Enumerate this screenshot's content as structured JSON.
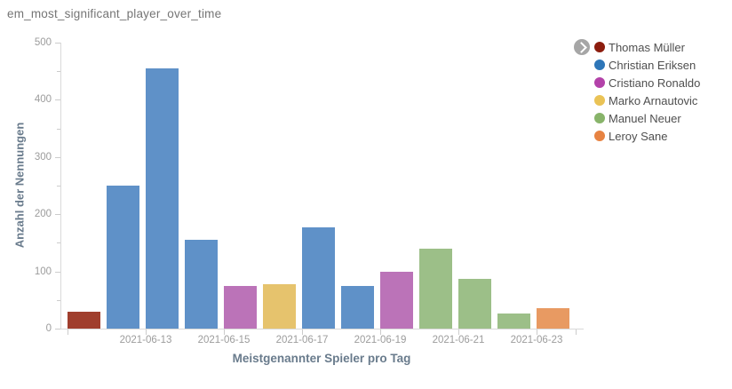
{
  "title": "em_most_significant_player_over_time",
  "legend": {
    "items": [
      {
        "label": "Thomas Müller",
        "color": "#8c1d0e"
      },
      {
        "label": "Christian Eriksen",
        "color": "#2e76b8"
      },
      {
        "label": "Cristiano Ronaldo",
        "color": "#b342a9"
      },
      {
        "label": "Marko Arnautovic",
        "color": "#eac356"
      },
      {
        "label": "Manuel Neuer",
        "color": "#88b46a"
      },
      {
        "label": "Leroy Sane",
        "color": "#e78342"
      }
    ]
  },
  "chart_data": {
    "type": "bar",
    "title": "em_most_significant_player_over_time",
    "xlabel": "Meistgenannter Spieler pro Tag",
    "ylabel": "Anzahl der Nennungen",
    "ylim": [
      0,
      500
    ],
    "yticks": [
      0,
      100,
      200,
      300,
      400,
      500
    ],
    "xtick_labels": [
      "2021-06-13",
      "2021-06-15",
      "2021-06-17",
      "2021-06-19",
      "2021-06-21",
      "2021-06-23"
    ],
    "grid": false,
    "legend_position": "right",
    "bars": [
      {
        "date": "2021-06-11",
        "player": "Thomas Müller",
        "value": 30,
        "color": "#a03e2d"
      },
      {
        "date": "2021-06-12",
        "player": "Christian Eriksen",
        "value": 250,
        "color": "#5f91c8"
      },
      {
        "date": "2021-06-13",
        "player": "Christian Eriksen",
        "value": 455,
        "color": "#5f91c8"
      },
      {
        "date": "2021-06-14",
        "player": "Christian Eriksen",
        "value": 155,
        "color": "#5f91c8"
      },
      {
        "date": "2021-06-15",
        "player": "Cristiano Ronaldo",
        "value": 75,
        "color": "#bb73b8"
      },
      {
        "date": "2021-06-16",
        "player": "Marko Arnautovic",
        "value": 78,
        "color": "#e6c36d"
      },
      {
        "date": "2021-06-17",
        "player": "Christian Eriksen",
        "value": 177,
        "color": "#5f91c8"
      },
      {
        "date": "2021-06-18",
        "player": "Christian Eriksen",
        "value": 74,
        "color": "#5f91c8"
      },
      {
        "date": "2021-06-19",
        "player": "Cristiano Ronaldo",
        "value": 100,
        "color": "#bb73b8"
      },
      {
        "date": "2021-06-20",
        "player": "Manuel Neuer",
        "value": 139,
        "color": "#9cbf88"
      },
      {
        "date": "2021-06-21",
        "player": "Manuel Neuer",
        "value": 87,
        "color": "#9cbf88"
      },
      {
        "date": "2021-06-22",
        "player": "Manuel Neuer",
        "value": 26,
        "color": "#9cbf88"
      },
      {
        "date": "2021-06-23",
        "player": "Leroy Sane",
        "value": 35,
        "color": "#e89a62"
      }
    ]
  }
}
